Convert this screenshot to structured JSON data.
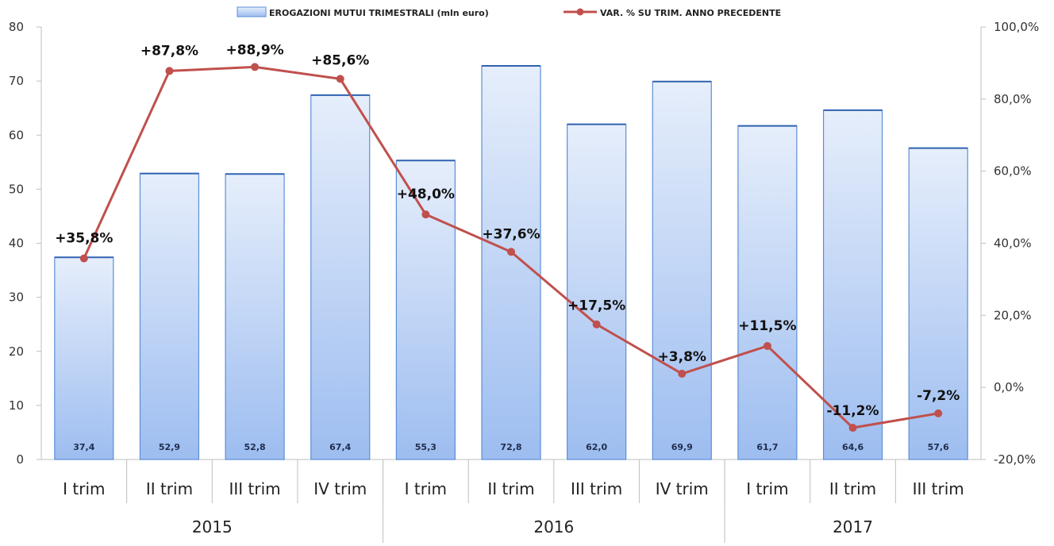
{
  "chart_data": {
    "type": "bar+line",
    "categories": [
      "I trim",
      "II trim",
      "III trim",
      "IV trim",
      "I trim",
      "II trim",
      "III trim",
      "IV trim",
      "I trim",
      "II trim",
      "III trim"
    ],
    "groups": [
      {
        "label": "2015",
        "span": 4
      },
      {
        "label": "2016",
        "span": 4
      },
      {
        "label": "2017",
        "span": 3
      }
    ],
    "series": [
      {
        "name": "EROGAZIONI MUTUI TRIMESTRALI (mln euro)",
        "type": "bar",
        "axis": "left",
        "values": [
          37.4,
          52.9,
          52.8,
          67.4,
          55.3,
          72.8,
          62.0,
          69.9,
          61.7,
          64.6,
          57.6
        ],
        "labels": [
          "37,4",
          "52,9",
          "52,8",
          "67,4",
          "55,3",
          "72,8",
          "62,0",
          "69,9",
          "61,7",
          "64,6",
          "57,6"
        ],
        "color": "#bcd3f5"
      },
      {
        "name": "VAR. % SU TRIM. ANNO PRECEDENTE",
        "type": "line",
        "axis": "right",
        "values": [
          35.8,
          87.8,
          88.9,
          85.6,
          48.0,
          37.6,
          17.5,
          3.8,
          11.5,
          -11.2,
          -7.2
        ],
        "labels": [
          "+35,8%",
          "+87,8%",
          "+88,9%",
          "+85,6%",
          "+48,0%",
          "+37,6%",
          "+17,5%",
          "+3,8%",
          "+11,5%",
          "-11,2%",
          "-7,2%"
        ],
        "color": "#c0504d"
      }
    ],
    "y_left": {
      "min": 0,
      "max": 80,
      "ticks": [
        "0",
        "10",
        "20",
        "30",
        "40",
        "50",
        "60",
        "70",
        "80"
      ]
    },
    "y_right": {
      "min": -20,
      "max": 100,
      "ticks": [
        "-20,0%",
        "0,0%",
        "20,0%",
        "40,0%",
        "60,0%",
        "80,0%",
        "100,0%"
      ]
    },
    "legend_position": "top",
    "grid": false
  }
}
